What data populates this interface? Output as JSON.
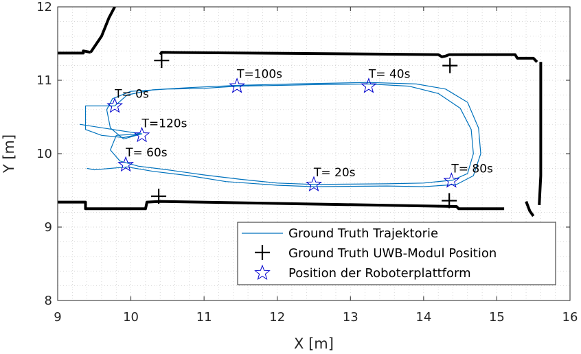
{
  "chart_data": {
    "type": "scatter",
    "xlabel": "X [m]",
    "ylabel": "Y [m]",
    "xlim": [
      9,
      16
    ],
    "ylim": [
      8,
      12
    ],
    "xticks": [
      "9",
      "10",
      "11",
      "12",
      "13",
      "14",
      "15",
      "16"
    ],
    "yticks": [
      "8",
      "9",
      "10",
      "11",
      "12"
    ],
    "grid": "dotted-minor",
    "legend_position": "bottom-right",
    "colors": {
      "trajectory": "#0072BD",
      "robot_marker": "#0000CD",
      "walls": "#000000"
    },
    "series": [
      {
        "name": "Ground Truth Trajektorie",
        "type": "line",
        "points": [
          [
            9.3,
            10.4
          ],
          [
            9.75,
            10.33
          ],
          [
            10.15,
            10.27
          ],
          [
            9.9,
            10.2
          ],
          [
            9.72,
            10.35
          ],
          [
            9.67,
            10.6
          ],
          [
            9.75,
            10.75
          ],
          [
            10.0,
            10.85
          ],
          [
            10.5,
            10.88
          ],
          [
            11.0,
            10.89
          ],
          [
            11.45,
            10.92
          ],
          [
            12.0,
            10.93
          ],
          [
            12.5,
            10.94
          ],
          [
            13.25,
            10.95
          ],
          [
            13.8,
            10.92
          ],
          [
            14.2,
            10.82
          ],
          [
            14.5,
            10.62
          ],
          [
            14.65,
            10.33
          ],
          [
            14.68,
            10.0
          ],
          [
            14.6,
            9.73
          ],
          [
            14.4,
            9.64
          ],
          [
            14.0,
            9.6
          ],
          [
            13.5,
            9.59
          ],
          [
            13.0,
            9.585
          ],
          [
            12.5,
            9.58
          ],
          [
            12.0,
            9.6
          ],
          [
            11.5,
            9.65
          ],
          [
            11.0,
            9.71
          ],
          [
            10.5,
            9.78
          ],
          [
            10.1,
            9.83
          ],
          [
            9.85,
            9.9
          ],
          [
            9.72,
            10.05
          ],
          [
            9.8,
            10.25
          ],
          [
            10.15,
            10.27
          ],
          [
            9.9,
            10.22
          ],
          [
            9.6,
            10.25
          ],
          [
            9.38,
            10.33
          ],
          [
            9.38,
            10.65
          ],
          [
            9.78,
            10.65
          ],
          [
            9.95,
            10.8
          ],
          [
            10.3,
            10.87
          ],
          [
            10.8,
            10.9
          ],
          [
            11.45,
            10.93
          ],
          [
            12.2,
            10.95
          ],
          [
            13.25,
            10.97
          ],
          [
            13.9,
            10.95
          ],
          [
            14.3,
            10.88
          ],
          [
            14.6,
            10.7
          ],
          [
            14.75,
            10.35
          ],
          [
            14.78,
            10.0
          ],
          [
            14.68,
            9.7
          ],
          [
            14.45,
            9.58
          ],
          [
            14.0,
            9.55
          ],
          [
            13.5,
            9.56
          ],
          [
            12.5,
            9.55
          ],
          [
            12.0,
            9.57
          ],
          [
            11.3,
            9.62
          ],
          [
            10.8,
            9.7
          ],
          [
            10.3,
            9.76
          ],
          [
            9.95,
            9.82
          ],
          [
            9.5,
            9.78
          ],
          [
            9.4,
            9.8
          ]
        ]
      },
      {
        "name": "Ground Truth UWB-Modul Position",
        "type": "marker-plus",
        "points": [
          [
            10.42,
            11.27
          ],
          [
            14.36,
            11.2
          ],
          [
            10.38,
            9.42
          ],
          [
            14.35,
            9.36
          ]
        ]
      },
      {
        "name": "Position der Roboterplattform",
        "type": "marker-star",
        "points": [
          {
            "x": 9.78,
            "y": 10.65,
            "label": "T= 0s"
          },
          {
            "x": 12.5,
            "y": 9.58,
            "label": "T= 20s"
          },
          {
            "x": 13.25,
            "y": 10.92,
            "label": "T= 40s"
          },
          {
            "x": 9.93,
            "y": 9.85,
            "label": "T= 60s"
          },
          {
            "x": 14.38,
            "y": 9.63,
            "label": "T= 80s"
          },
          {
            "x": 11.45,
            "y": 10.92,
            "label": "T=100s"
          },
          {
            "x": 10.15,
            "y": 10.25,
            "label": "T=120s"
          }
        ]
      },
      {
        "name": "",
        "type": "walls",
        "polylines": [
          [
            [
              9.0,
              11.37
            ],
            [
              9.35,
              11.37
            ],
            [
              9.35,
              11.4
            ],
            [
              9.45,
              11.38
            ]
          ],
          [
            [
              9.45,
              11.38
            ],
            [
              9.6,
              11.6
            ],
            [
              9.7,
              11.85
            ],
            [
              9.78,
              12.0
            ]
          ],
          [
            [
              10.4,
              11.35
            ],
            [
              10.42,
              11.38
            ],
            [
              14.2,
              11.35
            ],
            [
              14.25,
              11.32
            ],
            [
              14.3,
              11.33
            ],
            [
              14.35,
              11.35
            ],
            [
              15.25,
              11.35
            ],
            [
              15.28,
              11.3
            ],
            [
              15.5,
              11.3
            ],
            [
              15.55,
              11.25
            ]
          ],
          [
            [
              15.6,
              11.25
            ],
            [
              15.6,
              9.7
            ],
            [
              15.58,
              9.3
            ]
          ],
          [
            [
              9.0,
              9.34
            ],
            [
              9.38,
              9.34
            ],
            [
              9.38,
              9.25
            ],
            [
              10.2,
              9.25
            ],
            [
              10.22,
              9.34
            ],
            [
              10.4,
              9.35
            ],
            [
              14.45,
              9.28
            ],
            [
              14.48,
              9.25
            ],
            [
              15.1,
              9.25
            ]
          ],
          [
            [
              15.4,
              9.35
            ],
            [
              15.45,
              9.22
            ],
            [
              15.5,
              9.15
            ]
          ]
        ]
      }
    ]
  }
}
